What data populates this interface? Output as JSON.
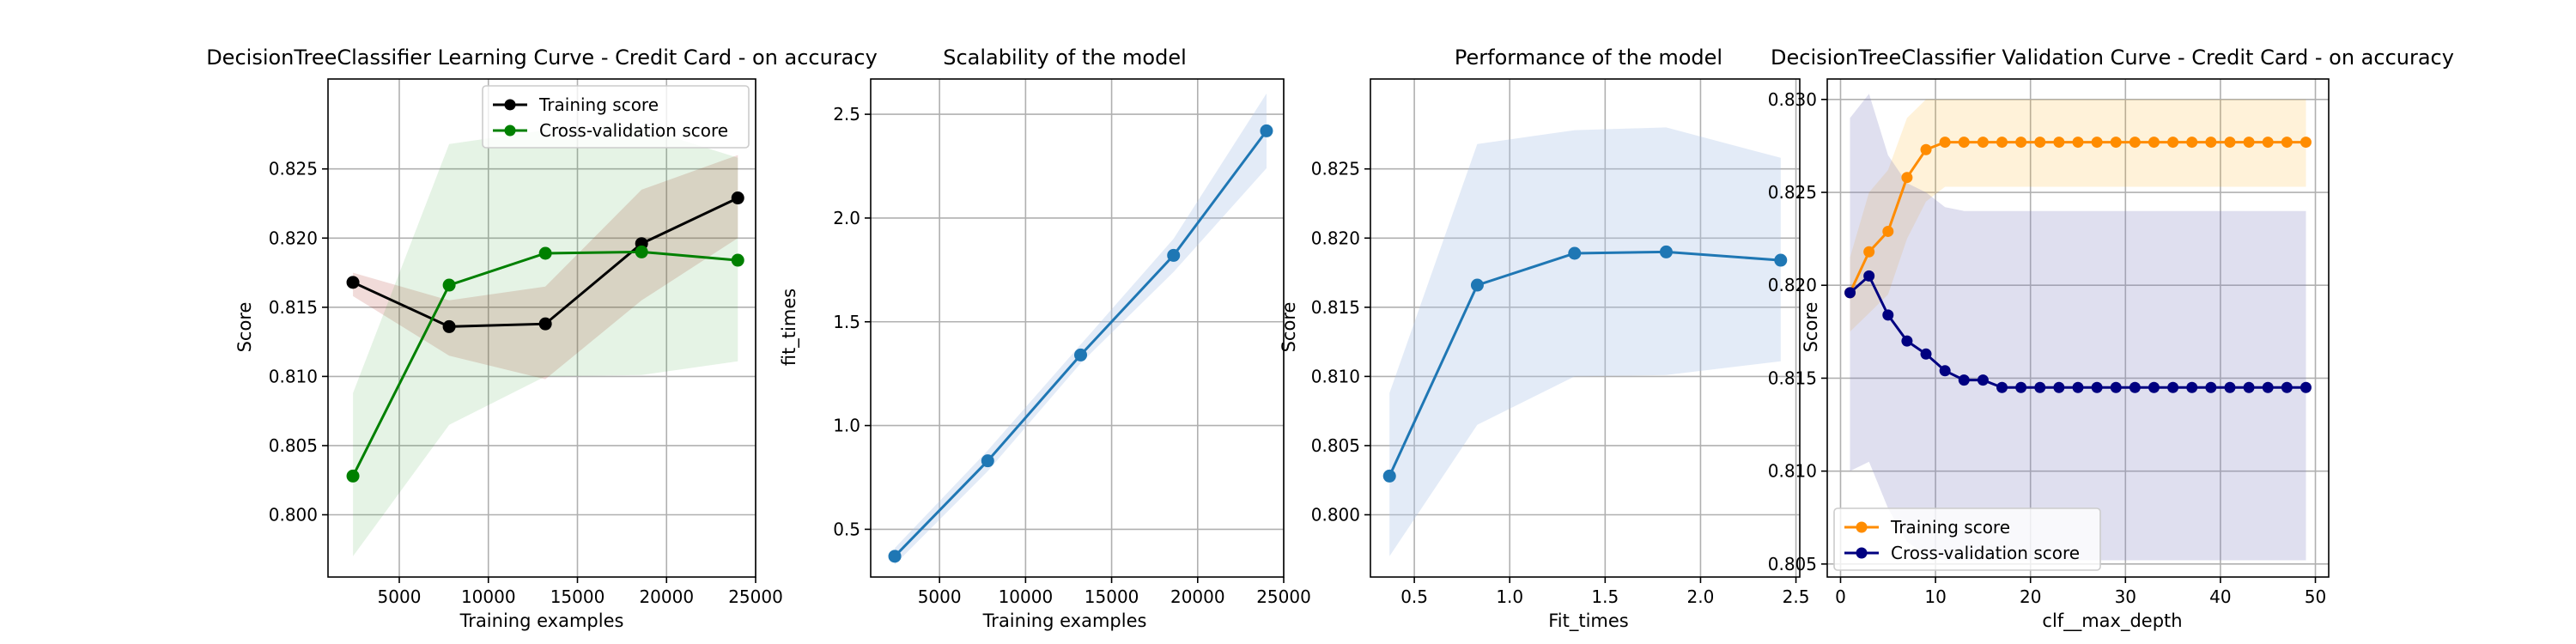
{
  "colors": {
    "train": "#000000",
    "cv": "#008000",
    "blue": "#1f77b4",
    "orange": "#ff8c00",
    "navy": "#000080",
    "train_band": "#b03a2e",
    "cv_band": "#2ca02c",
    "blue_band": "#aec7e8",
    "orange_band": "#ffa500",
    "navy_band": "#8080c0"
  },
  "chart_data": [
    {
      "type": "line",
      "title": "DecisionTreeClassifier Learning Curve - Credit Card - on accuracy",
      "xlabel": "Training examples",
      "ylabel": "Score",
      "xlim": [
        1000,
        25000
      ],
      "ylim": [
        0.7955,
        0.8315
      ],
      "xticks": [
        "5000",
        "10000",
        "15000",
        "20000",
        "25000"
      ],
      "yticks": [
        "0.800",
        "0.805",
        "0.810",
        "0.815",
        "0.820",
        "0.825"
      ],
      "grid": true,
      "legend": "top-right",
      "x": [
        2400,
        7800,
        13200,
        18600,
        24000
      ],
      "series": [
        {
          "name": "Training score",
          "color": "train",
          "values": [
            0.8168,
            0.8136,
            0.8138,
            0.8196,
            0.8229
          ],
          "lower": [
            0.8158,
            0.8115,
            0.8098,
            0.8155,
            0.82
          ],
          "upper": [
            0.8175,
            0.8155,
            0.8165,
            0.8235,
            0.826
          ]
        },
        {
          "name": "Cross-validation score",
          "color": "cv",
          "values": [
            0.8028,
            0.8166,
            0.8189,
            0.819,
            0.8184
          ],
          "lower": [
            0.797,
            0.8065,
            0.81,
            0.8101,
            0.8111
          ],
          "upper": [
            0.8088,
            0.8268,
            0.8278,
            0.828,
            0.8258
          ]
        }
      ]
    },
    {
      "type": "line",
      "title": "Scalability of the model",
      "xlabel": "Training examples",
      "ylabel": "fit_times",
      "xlim": [
        1000,
        25000
      ],
      "ylim": [
        0.27,
        2.67
      ],
      "xticks": [
        "5000",
        "10000",
        "15000",
        "20000",
        "25000"
      ],
      "yticks": [
        "0.5",
        "1.0",
        "1.5",
        "2.0",
        "2.5"
      ],
      "grid": true,
      "x": [
        2400,
        7800,
        13200,
        18600,
        24000
      ],
      "series": [
        {
          "color": "blue",
          "values": [
            0.37,
            0.83,
            1.34,
            1.82,
            2.42
          ],
          "lower": [
            0.33,
            0.78,
            1.3,
            1.74,
            2.24
          ],
          "upper": [
            0.41,
            0.88,
            1.39,
            1.9,
            2.6
          ]
        }
      ]
    },
    {
      "type": "line",
      "title": "Performance of the model",
      "xlabel": "Fit_times",
      "ylabel": "Score",
      "xlim": [
        0.27,
        2.52
      ],
      "ylim": [
        0.7955,
        0.8315
      ],
      "xticks": [
        "0.5",
        "1.0",
        "1.5",
        "2.0",
        "2.5"
      ],
      "yticks": [
        "0.800",
        "0.805",
        "0.810",
        "0.815",
        "0.820",
        "0.825"
      ],
      "grid": true,
      "x": [
        0.37,
        0.83,
        1.34,
        1.82,
        2.42
      ],
      "series": [
        {
          "color": "blue",
          "values": [
            0.8028,
            0.8166,
            0.8189,
            0.819,
            0.8184
          ],
          "lower": [
            0.797,
            0.8065,
            0.81,
            0.8101,
            0.8111
          ],
          "upper": [
            0.8088,
            0.8268,
            0.8278,
            0.828,
            0.8258
          ]
        }
      ]
    },
    {
      "type": "line",
      "title": "DecisionTreeClassifier Validation Curve - Credit Card - on accuracy",
      "xlabel": "clf__max_depth",
      "ylabel": "Score",
      "xlim": [
        -1.4,
        51.4
      ],
      "ylim": [
        0.8043,
        0.8311
      ],
      "xticks": [
        "0",
        "10",
        "20",
        "30",
        "40",
        "50"
      ],
      "yticks": [
        "0.805",
        "0.810",
        "0.815",
        "0.820",
        "0.825",
        "0.830"
      ],
      "grid": true,
      "legend": "bottom-left",
      "x": [
        1,
        3,
        5,
        7,
        9,
        11,
        13,
        15,
        17,
        19,
        21,
        23,
        25,
        27,
        29,
        31,
        33,
        35,
        37,
        39,
        41,
        43,
        45,
        47,
        49
      ],
      "series": [
        {
          "name": "Training score",
          "color": "orange",
          "values": [
            0.8196,
            0.8218,
            0.8229,
            0.8258,
            0.8273,
            0.8277,
            0.8277,
            0.8277,
            0.8277,
            0.8277,
            0.8277,
            0.8277,
            0.8277,
            0.8277,
            0.8277,
            0.8277,
            0.8277,
            0.8277,
            0.8277,
            0.8277,
            0.8277,
            0.8277,
            0.8277,
            0.8277,
            0.8277
          ],
          "lower": [
            0.8175,
            0.8185,
            0.8195,
            0.8225,
            0.8245,
            0.8253,
            0.8253,
            0.8253,
            0.8253,
            0.8253,
            0.8253,
            0.8253,
            0.8253,
            0.8253,
            0.8253,
            0.8253,
            0.8253,
            0.8253,
            0.8253,
            0.8253,
            0.8253,
            0.8253,
            0.8253,
            0.8253,
            0.8253
          ],
          "upper": [
            0.8215,
            0.825,
            0.8262,
            0.829,
            0.83,
            0.83,
            0.83,
            0.83,
            0.83,
            0.83,
            0.83,
            0.83,
            0.83,
            0.83,
            0.83,
            0.83,
            0.83,
            0.83,
            0.83,
            0.83,
            0.83,
            0.83,
            0.83,
            0.83,
            0.83
          ]
        },
        {
          "name": "Cross-validation score",
          "color": "navy",
          "values": [
            0.8196,
            0.8205,
            0.8184,
            0.817,
            0.8163,
            0.8154,
            0.8149,
            0.8149,
            0.8145,
            0.8145,
            0.8145,
            0.8145,
            0.8145,
            0.8145,
            0.8145,
            0.8145,
            0.8145,
            0.8145,
            0.8145,
            0.8145,
            0.8145,
            0.8145,
            0.8145,
            0.8145,
            0.8145
          ],
          "lower": [
            0.81,
            0.8105,
            0.808,
            0.8062,
            0.8055,
            0.8052,
            0.8052,
            0.8052,
            0.8052,
            0.8052,
            0.8052,
            0.8052,
            0.8052,
            0.8052,
            0.8052,
            0.8052,
            0.8052,
            0.8052,
            0.8052,
            0.8052,
            0.8052,
            0.8052,
            0.8052,
            0.8052,
            0.8052
          ],
          "upper": [
            0.829,
            0.8303,
            0.827,
            0.8255,
            0.825,
            0.8242,
            0.824,
            0.824,
            0.824,
            0.824,
            0.824,
            0.824,
            0.824,
            0.824,
            0.824,
            0.824,
            0.824,
            0.824,
            0.824,
            0.824,
            0.824,
            0.824,
            0.824,
            0.824,
            0.824
          ]
        }
      ]
    }
  ]
}
